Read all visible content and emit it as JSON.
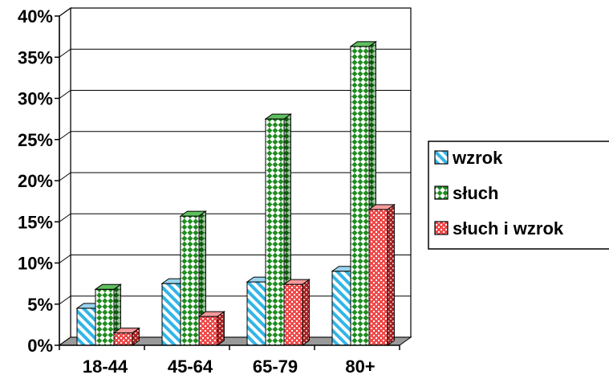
{
  "chart_data": {
    "type": "bar",
    "categories": [
      "18-44",
      "45-64",
      "65-79",
      "80+"
    ],
    "series": [
      {
        "name": "wzrok",
        "values": [
          4.5,
          7.5,
          7.7,
          9.0
        ],
        "color": "#33b5e5"
      },
      {
        "name": "słuch",
        "values": [
          6.8,
          15.7,
          27.5,
          36.3
        ],
        "color": "#1e8c1e"
      },
      {
        "name": "słuch i wzrok",
        "values": [
          1.5,
          3.5,
          7.4,
          16.5
        ],
        "color": "#f04a4a"
      }
    ],
    "ylim": [
      0,
      40
    ],
    "yticks": [
      "0%",
      "5%",
      "10%",
      "15%",
      "20%",
      "25%",
      "30%",
      "35%",
      "40%"
    ],
    "grid": true,
    "legend_position": "right"
  }
}
